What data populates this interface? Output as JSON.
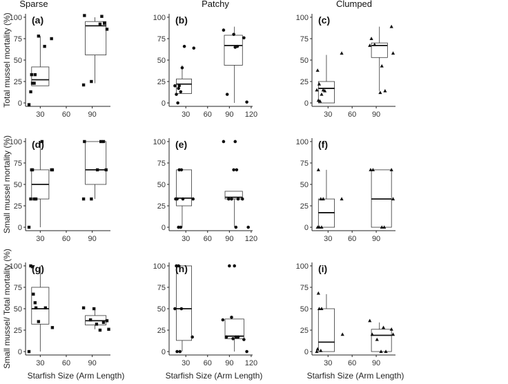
{
  "figure": {
    "column_titles": [
      "Sparse",
      "Patchy",
      "Clumped"
    ],
    "row_ylabels": [
      "Total mussel mortality (%)",
      "Small mussel mortality (%)",
      "Small mussel/ Total mortality (%)"
    ],
    "xlabel": "Starfish Size (Arm Length)"
  },
  "chart_data": [
    {
      "id": "a",
      "type": "box",
      "marker": "square",
      "panel_label": "(a)",
      "column_title": "Sparse",
      "ylabel": "Total mussel mortality (%)",
      "xlabel": "",
      "xlim": [
        13,
        111
      ],
      "xticks": [
        30,
        60,
        90
      ],
      "ylim": [
        -4,
        104
      ],
      "yticks": [
        0,
        25,
        50,
        75,
        100
      ],
      "groups": [
        {
          "center": 30,
          "box": {
            "low": 20,
            "q1": 20,
            "median": 27,
            "q3": 42,
            "high": 78,
            "x0": 20,
            "x1": 40
          },
          "points": [
            [
              17,
              -2
            ],
            [
              19,
              13
            ],
            [
              20,
              33
            ],
            [
              21,
              23
            ],
            [
              23,
              23
            ],
            [
              24,
              33
            ],
            [
              28,
              78
            ],
            [
              35,
              66
            ],
            [
              43,
              75
            ]
          ]
        },
        {
          "center": 93,
          "box": {
            "low": 23,
            "q1": 56,
            "median": 90,
            "q3": 95,
            "high": 100,
            "x0": 82,
            "x1": 106
          },
          "points": [
            [
              80,
              21
            ],
            [
              81,
              102
            ],
            [
              89,
              25
            ],
            [
              99,
              92
            ],
            [
              101,
              101
            ],
            [
              104,
              93
            ],
            [
              107,
              86
            ]
          ]
        }
      ]
    },
    {
      "id": "b",
      "type": "box",
      "marker": "circle",
      "panel_label": "(b)",
      "column_title": "Patchy",
      "ylabel": "",
      "xlabel": "",
      "xlim": [
        7,
        122
      ],
      "xticks": [
        30,
        60,
        90,
        120
      ],
      "ylim": [
        -4,
        104
      ],
      "yticks": [
        0,
        25,
        50,
        75,
        100
      ],
      "groups": [
        {
          "center": 25,
          "box": {
            "low": 11,
            "q1": 11,
            "median": 22,
            "q3": 28,
            "high": 44,
            "x0": 17,
            "x1": 38
          },
          "points": [
            [
              15,
              20
            ],
            [
              17,
              10
            ],
            [
              19,
              0
            ],
            [
              20,
              17
            ],
            [
              21,
              20
            ],
            [
              23,
              13
            ],
            [
              25,
              41
            ],
            [
              28,
              66
            ],
            [
              41,
              64
            ]
          ]
        },
        {
          "center": 97,
          "box": {
            "low": 0,
            "q1": 44,
            "median": 67,
            "q3": 79,
            "high": 89,
            "x0": 83,
            "x1": 108
          },
          "points": [
            [
              82,
              85
            ],
            [
              87,
              10
            ],
            [
              96,
              80
            ],
            [
              98,
              65
            ],
            [
              101,
              66
            ],
            [
              110,
              76
            ],
            [
              114,
              1
            ]
          ]
        }
      ]
    },
    {
      "id": "c",
      "type": "box",
      "marker": "triangle",
      "panel_label": "(c)",
      "column_title": "Clumped",
      "ylabel": "",
      "xlabel": "",
      "xlim": [
        10,
        114
      ],
      "xticks": [
        30,
        60,
        90
      ],
      "ylim": [
        -4,
        104
      ],
      "yticks": [
        0,
        25,
        50,
        75,
        100
      ],
      "groups": [
        {
          "center": 28,
          "box": {
            "low": 0,
            "q1": 0,
            "median": 17,
            "q3": 25,
            "high": 56,
            "x0": 18,
            "x1": 38
          },
          "points": [
            [
              16,
              15
            ],
            [
              17,
              38
            ],
            [
              18,
              3
            ],
            [
              19,
              22
            ],
            [
              20,
              2
            ],
            [
              22,
              10
            ],
            [
              24,
              15
            ],
            [
              26,
              14
            ],
            [
              47,
              58
            ]
          ]
        },
        {
          "center": 94,
          "box": {
            "low": 14,
            "q1": 53,
            "median": 67,
            "q3": 70,
            "high": 89,
            "x0": 84,
            "x1": 104
          },
          "points": [
            [
              82,
              67
            ],
            [
              84,
              75
            ],
            [
              88,
              68
            ],
            [
              95,
              12
            ],
            [
              97,
              43
            ],
            [
              101,
              14
            ],
            [
              109,
              89
            ],
            [
              111,
              58
            ]
          ]
        }
      ]
    },
    {
      "id": "d",
      "type": "box",
      "marker": "square",
      "panel_label": "(d)",
      "column_title": "",
      "ylabel": "Small mussel mortality (%)",
      "xlabel": "",
      "xlim": [
        13,
        111
      ],
      "xticks": [
        30,
        60,
        90
      ],
      "ylim": [
        -4,
        104
      ],
      "yticks": [
        0,
        25,
        50,
        75,
        100
      ],
      "groups": [
        {
          "center": 30,
          "box": {
            "low": 0,
            "q1": 33,
            "median": 50,
            "q3": 67,
            "high": 100,
            "x0": 20,
            "x1": 40
          },
          "points": [
            [
              17,
              0
            ],
            [
              19,
              33
            ],
            [
              20,
              67
            ],
            [
              21,
              67
            ],
            [
              23,
              33
            ],
            [
              25,
              33
            ],
            [
              32,
              100
            ],
            [
              43,
              67
            ],
            [
              44,
              67
            ]
          ]
        },
        {
          "center": 93,
          "box": {
            "low": 33,
            "q1": 50,
            "median": 67,
            "q3": 100,
            "high": 100,
            "x0": 82,
            "x1": 106
          },
          "points": [
            [
              80,
              33
            ],
            [
              81,
              100
            ],
            [
              89,
              33
            ],
            [
              96,
              67
            ],
            [
              100,
              100
            ],
            [
              103,
              100
            ],
            [
              106,
              67
            ]
          ]
        }
      ]
    },
    {
      "id": "e",
      "type": "box",
      "marker": "circle",
      "panel_label": "(e)",
      "column_title": "",
      "ylabel": "",
      "xlabel": "",
      "xlim": [
        7,
        122
      ],
      "xticks": [
        30,
        60,
        90,
        120
      ],
      "ylim": [
        -4,
        104
      ],
      "yticks": [
        0,
        25,
        50,
        75,
        100
      ],
      "groups": [
        {
          "center": 25,
          "box": {
            "low": 0,
            "q1": 25,
            "median": 34,
            "q3": 67,
            "high": 67,
            "x0": 17,
            "x1": 38
          },
          "points": [
            [
              16,
              33
            ],
            [
              18,
              33
            ],
            [
              20,
              0
            ],
            [
              21,
              67
            ],
            [
              23,
              0
            ],
            [
              24,
              67
            ],
            [
              26,
              33
            ],
            [
              40,
              33
            ]
          ]
        },
        {
          "center": 97,
          "box": {
            "low": 0,
            "q1": 33,
            "median": 35,
            "q3": 42,
            "high": 42,
            "x0": 84,
            "x1": 108
          },
          "points": [
            [
              82,
              100
            ],
            [
              89,
              33
            ],
            [
              93,
              33
            ],
            [
              96,
              67
            ],
            [
              98,
              100
            ],
            [
              99,
              0
            ],
            [
              100,
              67
            ],
            [
              102,
              33
            ],
            [
              108,
              33
            ],
            [
              116,
              0
            ]
          ]
        }
      ]
    },
    {
      "id": "f",
      "type": "box",
      "marker": "triangle",
      "panel_label": "(f)",
      "column_title": "",
      "ylabel": "",
      "xlabel": "",
      "xlim": [
        10,
        114
      ],
      "xticks": [
        30,
        60,
        90
      ],
      "ylim": [
        -4,
        104
      ],
      "yticks": [
        0,
        25,
        50,
        75,
        100
      ],
      "groups": [
        {
          "center": 28,
          "box": {
            "low": 0,
            "q1": 0,
            "median": 17,
            "q3": 33,
            "high": 67,
            "x0": 18,
            "x1": 38
          },
          "points": [
            [
              17,
              0
            ],
            [
              18,
              67
            ],
            [
              19,
              0
            ],
            [
              21,
              33
            ],
            [
              22,
              0
            ],
            [
              24,
              33
            ],
            [
              47,
              33
            ]
          ]
        },
        {
          "center": 94,
          "box": {
            "low": 0,
            "q1": 0,
            "median": 33,
            "q3": 67,
            "high": 67,
            "x0": 84,
            "x1": 109
          },
          "points": [
            [
              83,
              67
            ],
            [
              86,
              67
            ],
            [
              97,
              0
            ],
            [
              100,
              0
            ],
            [
              109,
              67
            ],
            [
              111,
              33
            ]
          ]
        }
      ]
    },
    {
      "id": "g",
      "type": "box",
      "marker": "square",
      "panel_label": "(g)",
      "column_title": "",
      "ylabel": "Small mussel/ Total mortality (%)",
      "xlabel": "Starfish Size (Arm Length)",
      "xlim": [
        13,
        111
      ],
      "xticks": [
        30,
        60,
        90
      ],
      "ylim": [
        -4,
        104
      ],
      "yticks": [
        0,
        25,
        50,
        75,
        100
      ],
      "groups": [
        {
          "center": 30,
          "box": {
            "low": 0,
            "q1": 32,
            "median": 50,
            "q3": 75,
            "high": 100,
            "x0": 20,
            "x1": 40
          },
          "points": [
            [
              17,
              0
            ],
            [
              19,
              100
            ],
            [
              21,
              99
            ],
            [
              22,
              67
            ],
            [
              24,
              57
            ],
            [
              25,
              51
            ],
            [
              28,
              35
            ],
            [
              36,
              51
            ],
            [
              44,
              28
            ]
          ]
        },
        {
          "center": 93,
          "box": {
            "low": 26,
            "q1": 31,
            "median": 36,
            "q3": 42,
            "high": 50,
            "x0": 82,
            "x1": 106
          },
          "points": [
            [
              80,
              51
            ],
            [
              88,
              37
            ],
            [
              92,
              50
            ],
            [
              95,
              32
            ],
            [
              99,
              25
            ],
            [
              103,
              34
            ],
            [
              107,
              36
            ],
            [
              109,
              26
            ]
          ]
        }
      ]
    },
    {
      "id": "h",
      "type": "box",
      "marker": "circle",
      "panel_label": "(h)",
      "column_title": "",
      "ylabel": "",
      "xlabel": "Starfish Size (Arm Length)",
      "xlim": [
        7,
        122
      ],
      "xticks": [
        30,
        60,
        90,
        120
      ],
      "ylim": [
        -4,
        104
      ],
      "yticks": [
        0,
        25,
        50,
        75,
        100
      ],
      "groups": [
        {
          "center": 25,
          "box": {
            "low": 0,
            "q1": 13,
            "median": 50,
            "q3": 100,
            "high": 100,
            "x0": 17,
            "x1": 38
          },
          "points": [
            [
              15,
              50
            ],
            [
              17,
              100
            ],
            [
              18,
              0
            ],
            [
              20,
              100
            ],
            [
              22,
              0
            ],
            [
              24,
              50
            ],
            [
              39,
              17
            ]
          ]
        },
        {
          "center": 97,
          "box": {
            "low": 0,
            "q1": 15,
            "median": 18,
            "q3": 38,
            "high": 38,
            "x0": 84,
            "x1": 110
          },
          "points": [
            [
              81,
              37
            ],
            [
              86,
              17
            ],
            [
              90,
              100
            ],
            [
              93,
              40
            ],
            [
              95,
              15
            ],
            [
              97,
              100
            ],
            [
              99,
              17
            ],
            [
              102,
              17
            ],
            [
              110,
              14
            ],
            [
              114,
              0
            ]
          ]
        }
      ]
    },
    {
      "id": "i",
      "type": "box",
      "marker": "triangle",
      "panel_label": "(i)",
      "column_title": "",
      "ylabel": "",
      "xlabel": "Starfish Size (Arm Length)",
      "xlim": [
        10,
        114
      ],
      "xticks": [
        30,
        60,
        90
      ],
      "ylim": [
        -4,
        104
      ],
      "yticks": [
        0,
        25,
        50,
        75,
        100
      ],
      "groups": [
        {
          "center": 28,
          "box": {
            "low": 0,
            "q1": 0,
            "median": 11,
            "q3": 50,
            "high": 67,
            "x0": 18,
            "x1": 38
          },
          "points": [
            [
              16,
              0
            ],
            [
              17,
              3
            ],
            [
              18,
              68
            ],
            [
              19,
              50
            ],
            [
              21,
              1
            ],
            [
              22,
              50
            ],
            [
              48,
              20
            ]
          ]
        },
        {
          "center": 94,
          "box": {
            "low": 0,
            "q1": 0,
            "median": 19,
            "q3": 26,
            "high": 34,
            "x0": 84,
            "x1": 109
          },
          "points": [
            [
              82,
              36
            ],
            [
              85,
              20
            ],
            [
              91,
              14
            ],
            [
              96,
              0
            ],
            [
              99,
              28
            ],
            [
              102,
              0
            ],
            [
              109,
              26
            ],
            [
              111,
              20
            ]
          ]
        }
      ]
    }
  ]
}
